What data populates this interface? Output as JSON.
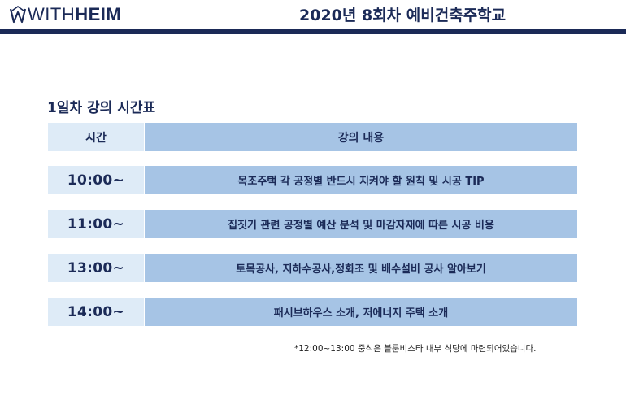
{
  "header": {
    "logo_with": "WITH",
    "logo_heim": "HEIM",
    "title": "2020년 8회차 예비건축주학교"
  },
  "section": {
    "title": "1일차 강의 시간표"
  },
  "table": {
    "headers": {
      "time": "시간",
      "content": "강의 내용"
    },
    "rows": [
      {
        "time": "10:00~",
        "content": "목조주택 각 공정별 반드시 지켜야 할 원칙 및 시공 TIP"
      },
      {
        "time": "11:00~",
        "content": "집짓기 관련 공정별 예산 분석 및 마감자재에 따른 시공 비용"
      },
      {
        "time": "13:00~",
        "content": "토목공사, 지하수공사,정화조 및 배수설비 공사 알아보기"
      },
      {
        "time": "14:00~",
        "content": "패시브하우스 소개, 저에너지 주택 소개"
      }
    ]
  },
  "footnote": "*12:00~13:00 중식은 블룸비스타 내부 식당에 마련되어있습니다.",
  "colors": {
    "navy": "#1b2a57",
    "time_cell": "#deebf7",
    "content_cell": "#a6c4e5"
  }
}
